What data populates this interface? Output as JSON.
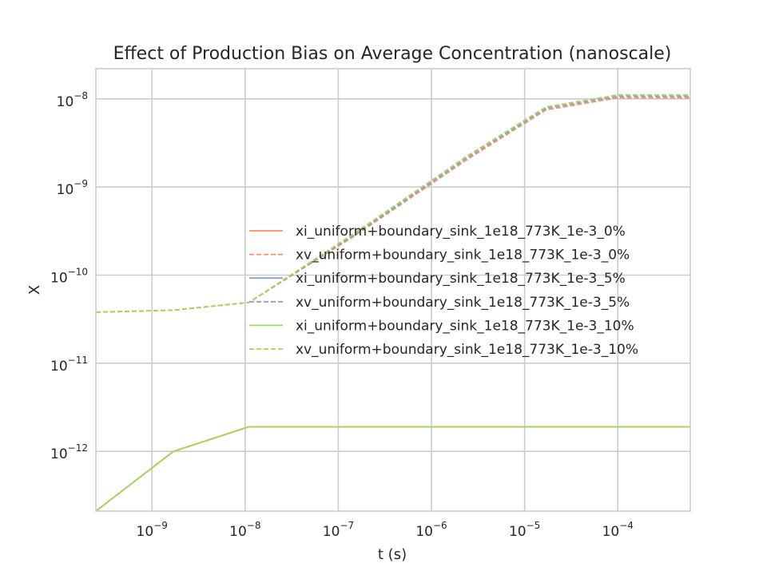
{
  "chart_data": {
    "type": "line",
    "title": "Effect of Production Bias on Average Concentration (nanoscale)",
    "xlabel": "t (s)",
    "ylabel": "X",
    "xscale": "log",
    "yscale": "log",
    "xlim": [
      2.5e-10,
      0.0006
    ],
    "ylim": [
      2.1e-13,
      2.2e-08
    ],
    "grid": true,
    "legend_position": "center-right",
    "x_ticks": [
      {
        "base": "10",
        "exp": "−9"
      },
      {
        "base": "10",
        "exp": "−8"
      },
      {
        "base": "10",
        "exp": "−7"
      },
      {
        "base": "10",
        "exp": "−6"
      },
      {
        "base": "10",
        "exp": "−5"
      },
      {
        "base": "10",
        "exp": "−4"
      }
    ],
    "y_ticks": [
      {
        "base": "10",
        "exp": "−12"
      },
      {
        "base": "10",
        "exp": "−11"
      },
      {
        "base": "10",
        "exp": "−10"
      },
      {
        "base": "10",
        "exp": "−9"
      },
      {
        "base": "10",
        "exp": "−8"
      }
    ],
    "x": [
      2.5e-10,
      1.7e-09,
      1.1e-08,
      1.5e-07,
      2.5e-06,
      1.7e-05,
      0.0001,
      0.0006
    ],
    "series": [
      {
        "name": "xi_uniform+boundary_sink_1e18_773K_1e-3_0%",
        "color": "#fc8d62",
        "dash": "solid",
        "values": [
          2.1e-13,
          1e-12,
          1.9e-12,
          1.9e-12,
          1.9e-12,
          1.9e-12,
          1.9e-12,
          1.9e-12
        ]
      },
      {
        "name": "xv_uniform+boundary_sink_1e18_773K_1e-3_0%",
        "color": "#fc8d62",
        "dash": "dashed",
        "values": [
          3.8e-11,
          4e-11,
          4.9e-11,
          2.8e-10,
          2.1e-09,
          7.5e-09,
          1.03e-08,
          1.03e-08
        ]
      },
      {
        "name": "xi_uniform+boundary_sink_1e18_773K_1e-3_5%",
        "color": "#8da0cb",
        "dash": "solid",
        "values": [
          2.1e-13,
          1e-12,
          1.9e-12,
          1.9e-12,
          1.9e-12,
          1.9e-12,
          1.9e-12,
          1.9e-12
        ]
      },
      {
        "name": "xv_uniform+boundary_sink_1e18_773K_1e-3_5%",
        "color": "#8da0cb",
        "dash": "dashed",
        "values": [
          3.8e-11,
          4e-11,
          4.9e-11,
          2.9e-10,
          2.2e-09,
          7.8e-09,
          1.07e-08,
          1.07e-08
        ]
      },
      {
        "name": "xi_uniform+boundary_sink_1e18_773K_1e-3_10%",
        "color": "#a6d854",
        "dash": "solid",
        "values": [
          2.1e-13,
          1e-12,
          1.9e-12,
          1.9e-12,
          1.9e-12,
          1.9e-12,
          1.9e-12,
          1.9e-12
        ]
      },
      {
        "name": "xv_uniform+boundary_sink_1e18_773K_1e-3_10%",
        "color": "#a6d854",
        "dash": "dashed",
        "values": [
          3.8e-11,
          4e-11,
          4.9e-11,
          3e-10,
          2.3e-09,
          8.1e-09,
          1.11e-08,
          1.11e-08
        ]
      }
    ]
  }
}
